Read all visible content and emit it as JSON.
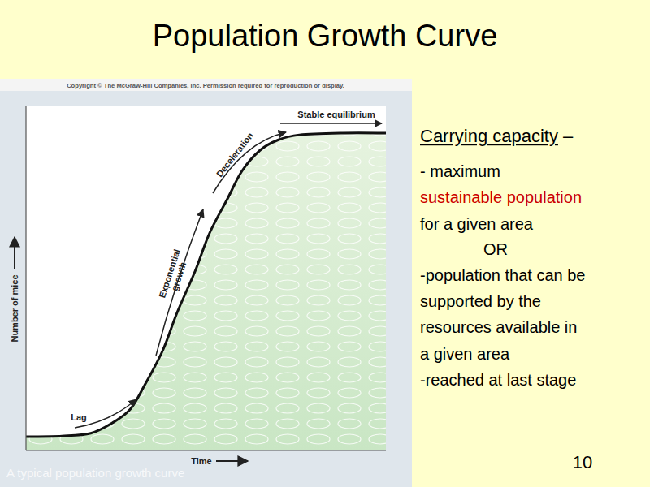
{
  "slide": {
    "title": "Population Growth Curve",
    "copyright": "Copyright © The McGraw-Hill Companies, Inc. Permission required for reproduction or display.",
    "caption": "A typical population growth curve",
    "page_number": 10,
    "side_text": [
      [
        {
          "text": "Carrying capacity",
          "style": "underline"
        },
        {
          "text": " –"
        }
      ],
      [
        {
          "text": "- maximum"
        }
      ],
      [
        {
          "text": "sustainable population",
          "color": "#cc0000"
        }
      ],
      [
        {
          "text": "for a given area"
        }
      ],
      [
        {
          "text": "OR",
          "style": "indent"
        }
      ],
      [
        {
          "text": "-population that can be"
        }
      ],
      [
        {
          "text": "supported by the"
        }
      ],
      [
        {
          "text": "resources available in"
        }
      ],
      [
        {
          "text": "a given area"
        }
      ],
      [
        {
          "text": "-reached at last stage"
        }
      ]
    ]
  },
  "chart_data": {
    "type": "line",
    "x_label": "Time",
    "y_label": "Number of mice",
    "x": [
      0,
      10,
      18,
      24,
      29,
      33,
      38,
      42,
      47,
      51,
      56,
      60,
      65,
      70,
      76,
      88,
      100
    ],
    "values": [
      4,
      4.2,
      5,
      8,
      12,
      19,
      29,
      40,
      52,
      63,
      73,
      81,
      87,
      90,
      91.5,
      92,
      92
    ],
    "color": "#111111",
    "xlim": [
      0,
      100
    ],
    "ylim": [
      0,
      100
    ],
    "tick_labels": false,
    "annotations": [
      "Lag",
      "Exponential growth",
      "Deceleration",
      "Stable equilibrium"
    ]
  }
}
